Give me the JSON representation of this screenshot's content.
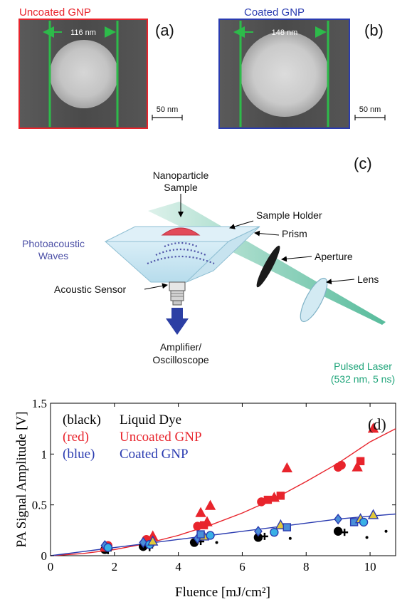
{
  "panel_a": {
    "title": "Uncoated GNP",
    "tag": "(a)",
    "width_label": "116 nm",
    "scale_label": "50 nm",
    "frame_color": "#e8242c"
  },
  "panel_b": {
    "title": "Coated GNP",
    "tag": "(b)",
    "width_label": "148 nm",
    "scale_label": "50 nm",
    "frame_color": "#2a3bb0"
  },
  "panel_c": {
    "tag": "(c)",
    "labels": {
      "sample_line1": "Nanoparticle",
      "sample_line2": "Sample",
      "holder": "Sample Holder",
      "prism": "Prism",
      "waves_line1": "Photoacoustic",
      "waves_line2": "Waves",
      "aperture": "Aperture",
      "lens": "Lens",
      "sensor": "Acoustic Sensor",
      "amp_line1": "Amplifier/",
      "amp_line2": "Oscilloscope",
      "laser_line1": "Pulsed Laser",
      "laser_line2": "(532 nm, 5 ns)"
    },
    "colors": {
      "waves": "#4b4fa6",
      "laser": "#1fa57a",
      "arrow": "#2c3fa4"
    }
  },
  "panel_d": {
    "tag": "(d)",
    "legend": [
      {
        "color_label": "(black)",
        "name": "Liquid Dye",
        "color": "#000000"
      },
      {
        "color_label": "(red)",
        "name": "Uncoated GNP",
        "color": "#e8242c"
      },
      {
        "color_label": "(blue)",
        "name": "Coated GNP",
        "color": "#2a3bb0"
      }
    ]
  },
  "chart_data": {
    "type": "scatter",
    "xlabel": "Fluence [mJ/cm²]",
    "ylabel": "PA Signal Amplitude [V]",
    "xlim": [
      0,
      10.8
    ],
    "ylim": [
      0,
      1.5
    ],
    "xticks": [
      0,
      2,
      4,
      6,
      8,
      10
    ],
    "yticks": [
      0,
      0.5,
      1,
      1.5
    ],
    "ytick_labels": [
      "0",
      "0.5",
      "1",
      "1.5"
    ],
    "grid": false,
    "legend_position": "top-left",
    "series": [
      {
        "name": "Uncoated GNP",
        "color": "#e8242c",
        "fit": [
          [
            0,
            0
          ],
          [
            1,
            0.02
          ],
          [
            2,
            0.06
          ],
          [
            3,
            0.12
          ],
          [
            4,
            0.2
          ],
          [
            5,
            0.3
          ],
          [
            6,
            0.42
          ],
          [
            7,
            0.56
          ],
          [
            8,
            0.73
          ],
          [
            9,
            0.91
          ],
          [
            10,
            1.12
          ],
          [
            10.8,
            1.25
          ]
        ],
        "points": [
          {
            "x": 1.8,
            "y": 0.1,
            "m": "circle"
          },
          {
            "x": 1.7,
            "y": 0.08,
            "m": "triangle"
          },
          {
            "x": 3.0,
            "y": 0.16,
            "m": "circle"
          },
          {
            "x": 3.2,
            "y": 0.19,
            "m": "triangle"
          },
          {
            "x": 3.1,
            "y": 0.14,
            "m": "square"
          },
          {
            "x": 4.6,
            "y": 0.29,
            "m": "circle"
          },
          {
            "x": 4.8,
            "y": 0.3,
            "m": "square"
          },
          {
            "x": 4.9,
            "y": 0.33,
            "m": "triangle"
          },
          {
            "x": 5.0,
            "y": 0.49,
            "m": "triangle"
          },
          {
            "x": 4.7,
            "y": 0.42,
            "m": "triangle"
          },
          {
            "x": 6.6,
            "y": 0.53,
            "m": "circle"
          },
          {
            "x": 6.8,
            "y": 0.55,
            "m": "square"
          },
          {
            "x": 7.0,
            "y": 0.57,
            "m": "triangle"
          },
          {
            "x": 7.2,
            "y": 0.59,
            "m": "square"
          },
          {
            "x": 7.4,
            "y": 0.86,
            "m": "triangle"
          },
          {
            "x": 9.0,
            "y": 0.87,
            "m": "circle"
          },
          {
            "x": 9.1,
            "y": 0.89,
            "m": "circle"
          },
          {
            "x": 9.6,
            "y": 0.87,
            "m": "triangle"
          },
          {
            "x": 9.7,
            "y": 0.93,
            "m": "square"
          },
          {
            "x": 10.1,
            "y": 1.25,
            "m": "triangle"
          }
        ]
      },
      {
        "name": "Coated GNP",
        "color": "#2a3bb0",
        "fit": [
          [
            0,
            0
          ],
          [
            1,
            0.04
          ],
          [
            2,
            0.08
          ],
          [
            3,
            0.12
          ],
          [
            4,
            0.16
          ],
          [
            5,
            0.2
          ],
          [
            6,
            0.24
          ],
          [
            7,
            0.28
          ],
          [
            8,
            0.32
          ],
          [
            9,
            0.36
          ],
          [
            10,
            0.39
          ],
          [
            10.8,
            0.41
          ]
        ],
        "points": [
          {
            "x": 1.7,
            "y": 0.1,
            "m": "diamond"
          },
          {
            "x": 1.8,
            "y": 0.08,
            "m": "circle"
          },
          {
            "x": 2.9,
            "y": 0.13,
            "m": "diamond"
          },
          {
            "x": 3.1,
            "y": 0.11,
            "m": "circle"
          },
          {
            "x": 3.2,
            "y": 0.14,
            "m": "triangle"
          },
          {
            "x": 4.6,
            "y": 0.17,
            "m": "diamond"
          },
          {
            "x": 4.8,
            "y": 0.19,
            "m": "triangle"
          },
          {
            "x": 5.0,
            "y": 0.2,
            "m": "circle"
          },
          {
            "x": 4.7,
            "y": 0.21,
            "m": "square"
          },
          {
            "x": 6.5,
            "y": 0.24,
            "m": "diamond"
          },
          {
            "x": 7.0,
            "y": 0.23,
            "m": "circle"
          },
          {
            "x": 7.2,
            "y": 0.3,
            "m": "triangle"
          },
          {
            "x": 7.4,
            "y": 0.28,
            "m": "square"
          },
          {
            "x": 9.0,
            "y": 0.36,
            "m": "diamond"
          },
          {
            "x": 9.5,
            "y": 0.33,
            "m": "square"
          },
          {
            "x": 9.7,
            "y": 0.36,
            "m": "triangle"
          },
          {
            "x": 9.8,
            "y": 0.33,
            "m": "circle"
          },
          {
            "x": 10.1,
            "y": 0.4,
            "m": "triangle"
          }
        ]
      },
      {
        "name": "Liquid Dye",
        "color": "#000000",
        "points": [
          {
            "x": 1.7,
            "y": 0.06,
            "m": "circle"
          },
          {
            "x": 1.8,
            "y": 0.05,
            "m": "plus"
          },
          {
            "x": 1.9,
            "y": 0.07,
            "m": "dot"
          },
          {
            "x": 2.9,
            "y": 0.09,
            "m": "circle"
          },
          {
            "x": 3.1,
            "y": 0.08,
            "m": "plus"
          },
          {
            "x": 3.2,
            "y": 0.1,
            "m": "dot"
          },
          {
            "x": 4.5,
            "y": 0.13,
            "m": "circle"
          },
          {
            "x": 4.7,
            "y": 0.14,
            "m": "plus"
          },
          {
            "x": 5.2,
            "y": 0.13,
            "m": "dot"
          },
          {
            "x": 6.5,
            "y": 0.18,
            "m": "circle"
          },
          {
            "x": 6.7,
            "y": 0.19,
            "m": "plus"
          },
          {
            "x": 7.5,
            "y": 0.17,
            "m": "dot"
          },
          {
            "x": 9.0,
            "y": 0.24,
            "m": "circle"
          },
          {
            "x": 9.2,
            "y": 0.23,
            "m": "plus"
          },
          {
            "x": 9.9,
            "y": 0.18,
            "m": "dot"
          },
          {
            "x": 10.5,
            "y": 0.24,
            "m": "dot"
          }
        ]
      }
    ]
  }
}
